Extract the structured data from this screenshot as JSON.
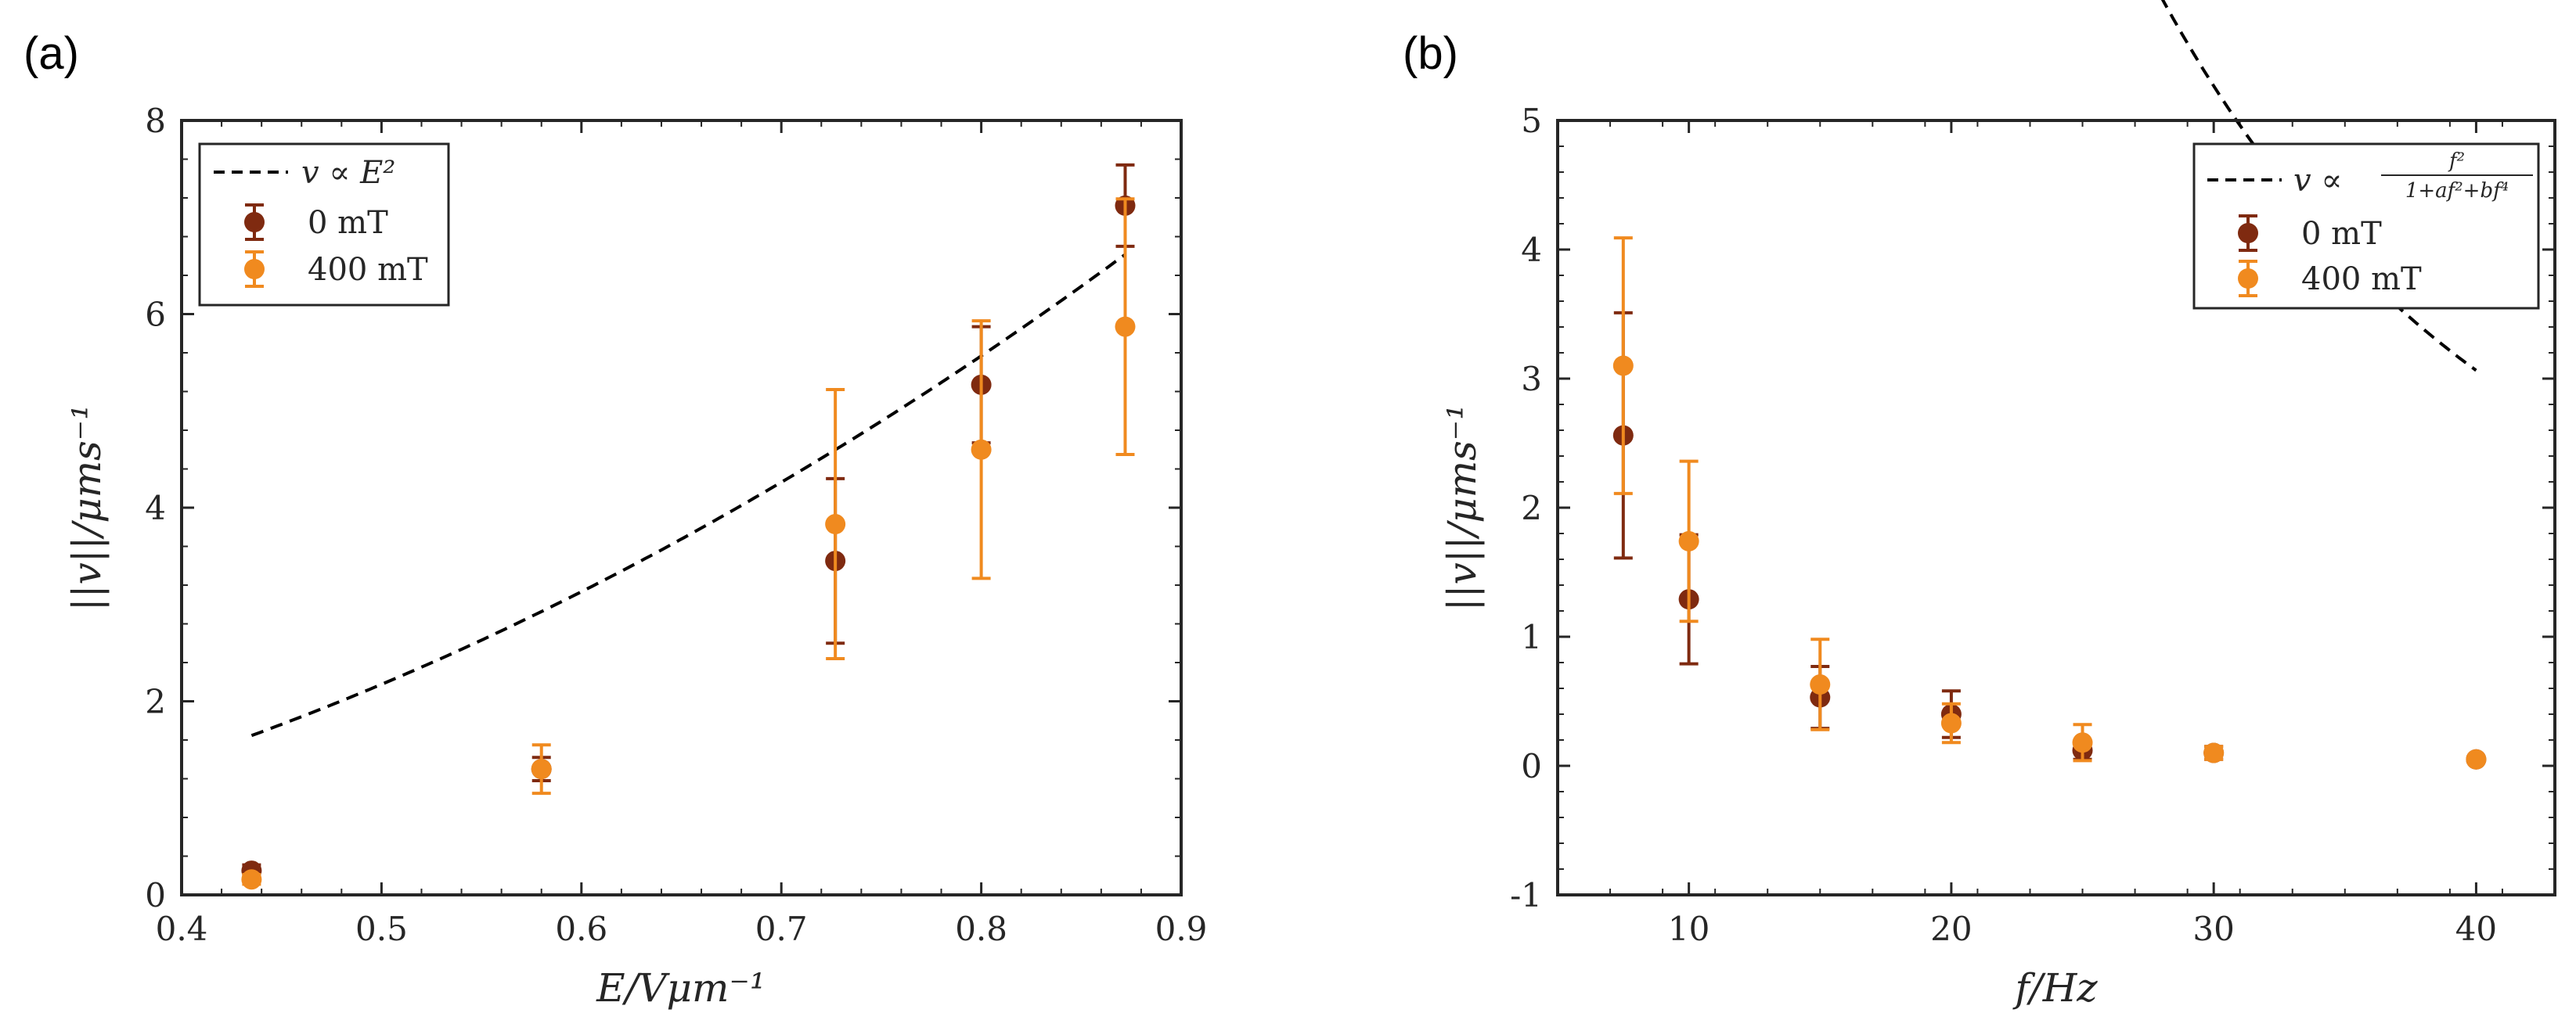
{
  "colors": {
    "series_0mT": "#7f2a10",
    "series_400mT": "#f08a1f",
    "fit": "#000000",
    "axis": "#262626"
  },
  "chart_data": [
    {
      "type": "scatter",
      "panel_label": "(a)",
      "xlabel": "E/Vμm⁻¹",
      "ylabel": "||v||/μms⁻¹",
      "xlim": [
        0.4,
        0.9
      ],
      "ylim": [
        0,
        8
      ],
      "xticks": [
        0.4,
        0.5,
        0.6,
        0.7,
        0.8,
        0.9
      ],
      "yticks": [
        0,
        2,
        4,
        6,
        8
      ],
      "xtick_labels": [
        "0.4",
        "0.5",
        "0.6",
        "0.7",
        "0.8",
        "0.9"
      ],
      "ytick_labels": [
        "0",
        "2",
        "4",
        "6",
        "8"
      ],
      "legend_position": "top-left",
      "fit": {
        "label": "v ∝ E²",
        "model": "quadratic",
        "k": 8.7,
        "x_range": [
          0.435,
          0.872
        ]
      },
      "series": [
        {
          "name": "0 mT",
          "x": [
            0.435,
            0.58,
            0.727,
            0.8,
            0.872
          ],
          "y": [
            0.25,
            1.3,
            3.45,
            5.27,
            7.12
          ],
          "err": [
            0.06,
            0.12,
            0.85,
            0.6,
            0.42
          ]
        },
        {
          "name": "400 mT",
          "x": [
            0.435,
            0.58,
            0.727,
            0.8,
            0.872
          ],
          "y": [
            0.16,
            1.3,
            3.83,
            4.6,
            5.87
          ],
          "err": [
            0.05,
            0.25,
            1.39,
            1.33,
            1.32
          ]
        }
      ]
    },
    {
      "type": "scatter",
      "panel_label": "(b)",
      "xlabel": "f/Hz",
      "ylabel": "||v||/μms⁻¹",
      "xlim": [
        5,
        43
      ],
      "ylim": [
        -1,
        5
      ],
      "xticks": [
        10,
        20,
        30,
        40
      ],
      "yticks": [
        -1,
        0,
        1,
        2,
        3,
        4,
        5
      ],
      "xtick_labels": [
        "10",
        "20",
        "30",
        "40"
      ],
      "ytick_labels": [
        "-1",
        "0",
        "1",
        "2",
        "3",
        "4",
        "5"
      ],
      "legend_position": "top-right",
      "fit": {
        "label": "v ∝",
        "numerator": "f²",
        "denominator": "1+af²+bf⁴",
        "model": "lorentzian",
        "A": 0.122,
        "a": 0.0,
        "b": 2.45e-05,
        "x_range": [
          7.5,
          40
        ]
      },
      "series": [
        {
          "name": "0 mT",
          "x": [
            7.5,
            10,
            15,
            20,
            25,
            30,
            40
          ],
          "y": [
            2.56,
            1.29,
            0.53,
            0.4,
            0.12,
            0.1,
            0.05
          ],
          "err": [
            0.95,
            0.5,
            0.24,
            0.18,
            0.07,
            0.05,
            0.02
          ]
        },
        {
          "name": "400 mT",
          "x": [
            7.5,
            10,
            15,
            20,
            25,
            30,
            40
          ],
          "y": [
            3.1,
            1.74,
            0.63,
            0.33,
            0.18,
            0.1,
            0.05
          ],
          "err": [
            0.99,
            0.62,
            0.35,
            0.15,
            0.14,
            0.05,
            0.02
          ]
        }
      ]
    }
  ]
}
